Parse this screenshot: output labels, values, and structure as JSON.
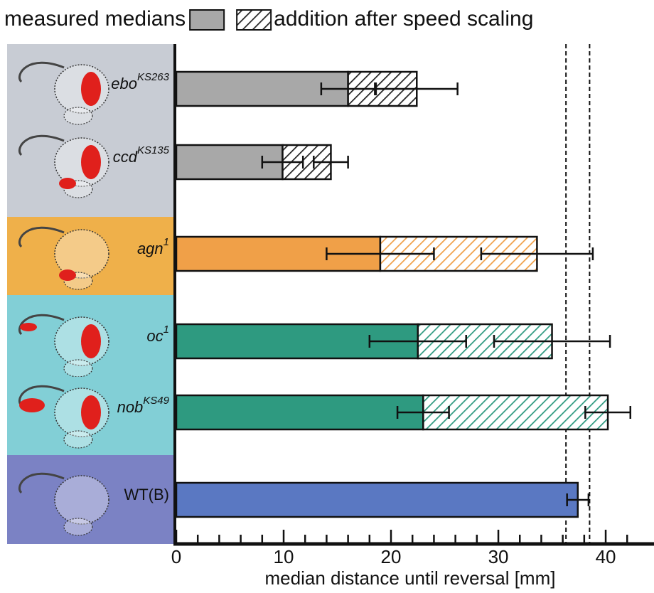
{
  "chart_data": {
    "type": "bar",
    "orientation": "horizontal",
    "xlabel": "median distance until reversal [mm]",
    "categories": [
      {
        "base": "ebo",
        "sup": "KS263",
        "italic": true
      },
      {
        "base": "ccd",
        "sup": "KS135",
        "italic": true
      },
      {
        "base": "agn",
        "sup": "1",
        "italic": true
      },
      {
        "base": "oc",
        "sup": "1",
        "italic": true
      },
      {
        "base": "nob",
        "sup": "KS49",
        "italic": true
      },
      {
        "base": "WT(B)",
        "italic": false
      }
    ],
    "colors": [
      "#a8a8a8",
      "#a8a8a8",
      "#f0a048",
      "#2e9a80",
      "#2e9a80",
      "#5a78c2"
    ],
    "hatch_colors": [
      "#222222",
      "#222222",
      "#f0a048",
      "#2e9a80",
      "#2e9a80",
      null
    ],
    "panel_colors": [
      "#c8ccd4",
      "#c8ccd4",
      "#efb04a",
      "#82cfd6",
      "#82cfd6",
      "#7b82c4"
    ],
    "series": [
      {
        "name": "measured medians",
        "color": "#a8a8a8",
        "hatched": false,
        "values": [
          16.0,
          9.9,
          19.0,
          22.5,
          23.0,
          37.4
        ],
        "errors": [
          2.5,
          1.9,
          5.0,
          4.5,
          2.4,
          1.0
        ]
      },
      {
        "name": "addition after speed scaling",
        "color": "#222222",
        "hatched": true,
        "values": [
          6.4,
          4.5,
          14.6,
          12.5,
          17.2,
          null
        ],
        "errors": [
          3.8,
          1.6,
          5.2,
          5.4,
          2.1,
          null
        ]
      }
    ],
    "reference_lines": [
      36.3,
      38.5
    ],
    "xlim": [
      0,
      44.5
    ],
    "xticks": [
      0,
      10,
      20,
      30,
      40
    ],
    "xminorticks": [
      2,
      4,
      6,
      8,
      12,
      14,
      16,
      18,
      22,
      24,
      26,
      28,
      32,
      34,
      36,
      38,
      42
    ]
  }
}
